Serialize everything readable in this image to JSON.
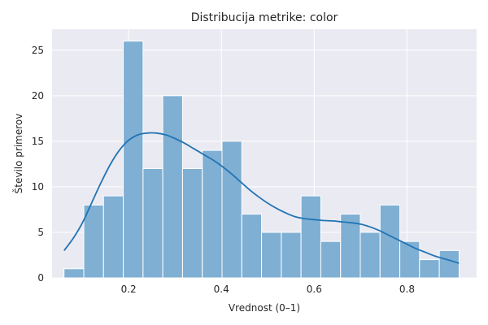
{
  "chart_data": {
    "type": "bar",
    "title": "Distribucija metrike: color",
    "xlabel": "Vrednost (0–1)",
    "ylabel": "Število primerov",
    "xlim": [
      0.035,
      0.95
    ],
    "ylim": [
      0,
      27.3
    ],
    "xticks": [
      0.2,
      0.4,
      0.6,
      0.8
    ],
    "xtick_labels": [
      "0.2",
      "0.4",
      "0.6",
      "0.8"
    ],
    "yticks": [
      0,
      5,
      10,
      15,
      20,
      25
    ],
    "ytick_labels": [
      "0",
      "5",
      "10",
      "15",
      "20",
      "25"
    ],
    "grid": true,
    "bin_edges": [
      0.0608,
      0.1034,
      0.1459,
      0.1885,
      0.2311,
      0.2736,
      0.3162,
      0.3588,
      0.4014,
      0.4439,
      0.4865,
      0.5291,
      0.5716,
      0.6142,
      0.6568,
      0.6993,
      0.7419,
      0.7845,
      0.827,
      0.8696,
      0.9122
    ],
    "counts": [
      1,
      8,
      9,
      26,
      12,
      20,
      12,
      14,
      15,
      7,
      5,
      5,
      9,
      4,
      7,
      5,
      8,
      4,
      2,
      3
    ],
    "kde": {
      "x": [
        0.061,
        0.08,
        0.1,
        0.12,
        0.14,
        0.16,
        0.18,
        0.2,
        0.22,
        0.24,
        0.26,
        0.28,
        0.3,
        0.32,
        0.34,
        0.36,
        0.38,
        0.4,
        0.42,
        0.44,
        0.46,
        0.48,
        0.5,
        0.52,
        0.54,
        0.56,
        0.58,
        0.6,
        0.62,
        0.64,
        0.66,
        0.68,
        0.7,
        0.72,
        0.74,
        0.76,
        0.78,
        0.8,
        0.82,
        0.84,
        0.86,
        0.88,
        0.9,
        0.912
      ],
      "y": [
        3.0,
        4.3,
        6.0,
        8.2,
        10.4,
        12.4,
        14.0,
        15.1,
        15.7,
        15.9,
        15.9,
        15.7,
        15.3,
        14.8,
        14.2,
        13.6,
        13.0,
        12.3,
        11.5,
        10.6,
        9.7,
        8.9,
        8.2,
        7.6,
        7.1,
        6.7,
        6.5,
        6.4,
        6.3,
        6.25,
        6.15,
        6.05,
        5.9,
        5.6,
        5.2,
        4.7,
        4.2,
        3.7,
        3.2,
        2.8,
        2.4,
        2.1,
        1.8,
        1.6
      ]
    },
    "colors": {
      "bar_fill": "#7fafd3",
      "bar_stroke": "#ffffff",
      "kde_line": "#2274b5",
      "plot_bg": "#eaeaf2",
      "grid": "#ffffff"
    }
  }
}
